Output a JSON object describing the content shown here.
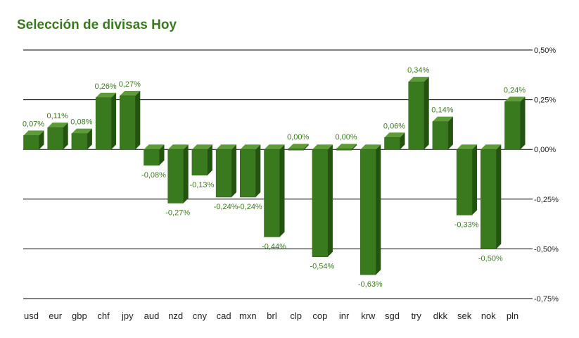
{
  "chart_data": {
    "type": "bar",
    "title": "Selección de divisas Hoy",
    "categories": [
      "usd",
      "eur",
      "gbp",
      "chf",
      "jpy",
      "aud",
      "nzd",
      "cny",
      "cad",
      "mxn",
      "brl",
      "clp",
      "cop",
      "inr",
      "krw",
      "sgd",
      "try",
      "dkk",
      "sek",
      "nok",
      "pln"
    ],
    "values": [
      0.07,
      0.11,
      0.08,
      0.26,
      0.27,
      -0.08,
      -0.27,
      -0.13,
      -0.24,
      -0.24,
      -0.44,
      0.0,
      -0.54,
      0.0,
      -0.63,
      0.06,
      0.34,
      0.14,
      -0.33,
      -0.5,
      0.24
    ],
    "value_labels": [
      "0,07%",
      "0,11%",
      "0,08%",
      "0,26%",
      "0,27%",
      "-0,08%",
      "-0,27%",
      "-0,13%",
      "-0,24%",
      "-0,24%",
      "-0,44%",
      "0,00%",
      "-0,54%",
      "0,00%",
      "-0,63%",
      "0,06%",
      "0,34%",
      "0,14%",
      "-0,33%",
      "-0,50%",
      "0,24%"
    ],
    "y_ticks": [
      0.5,
      0.25,
      0,
      -0.25,
      -0.5,
      -0.75
    ],
    "y_tick_labels": [
      "0,50%",
      "0,25%",
      "0,00%",
      "-0,25%",
      "-0,50%",
      "-0,75%"
    ],
    "ylim": [
      -0.75,
      0.5
    ],
    "y_axis_side": "right",
    "grid": true,
    "legend": "none",
    "colors": {
      "bar_front": "#3a7a1e",
      "bar_top": "#5e9c3a",
      "bar_side": "#24520f",
      "value_label": "#3d7a20",
      "title": "#3a7a1e",
      "grid": "#000000"
    }
  }
}
